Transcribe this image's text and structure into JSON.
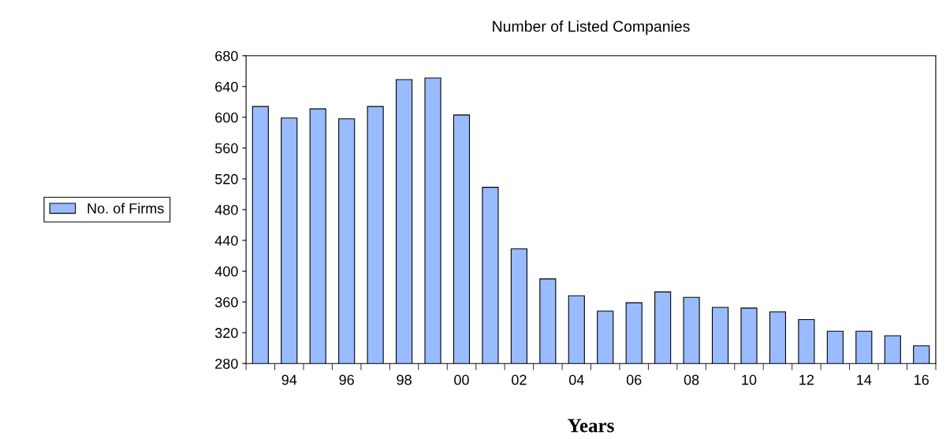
{
  "chart_data": {
    "type": "bar",
    "title": "Number of Listed Companies",
    "xlabel": "Years",
    "categories": [
      null,
      "94",
      null,
      "96",
      null,
      "98",
      null,
      "00",
      null,
      "02",
      null,
      "04",
      null,
      "06",
      null,
      "08",
      null,
      "10",
      null,
      "12",
      null,
      "14",
      null,
      "16"
    ],
    "series": [
      {
        "name": "No. of Firms",
        "color": "#99bbff",
        "values": [
          614,
          599,
          611,
          598,
          614,
          649,
          651,
          603,
          509,
          429,
          390,
          368,
          348,
          359,
          373,
          366,
          353,
          352,
          347,
          337,
          322,
          322,
          316,
          303
        ]
      }
    ],
    "ylim": [
      280,
      680
    ],
    "yticks": [
      280,
      320,
      360,
      400,
      440,
      480,
      520,
      560,
      600,
      640,
      680
    ],
    "grid": false,
    "legend": "left"
  }
}
